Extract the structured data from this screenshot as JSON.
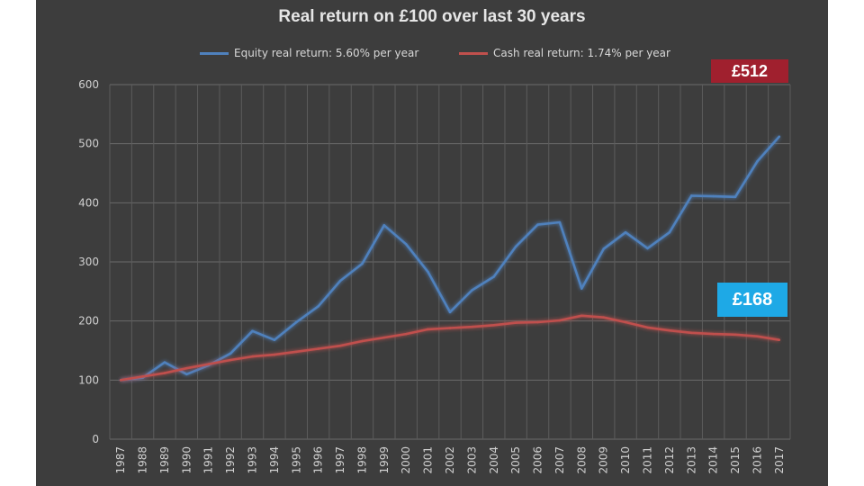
{
  "chart_data": {
    "type": "line",
    "title": "Real return on £100 over last 30 years",
    "xlabel": "",
    "ylabel": "",
    "ylim": [
      0,
      600
    ],
    "yticks": [
      0,
      100,
      200,
      300,
      400,
      500,
      600
    ],
    "grid": true,
    "legend_position": "top",
    "categories": [
      "1987",
      "1988",
      "1989",
      "1990",
      "1991",
      "1992",
      "1993",
      "1994",
      "1995",
      "1996",
      "1997",
      "1998",
      "1999",
      "2000",
      "2001",
      "2002",
      "2003",
      "2004",
      "2005",
      "2006",
      "2007",
      "2008",
      "2009",
      "2010",
      "2011",
      "2012",
      "2013",
      "2014",
      "2015",
      "2016",
      "2017"
    ],
    "series": [
      {
        "name": "Equity real return: 5.60% per year",
        "color": "#4f81bd",
        "values": [
          100,
          104,
          130,
          110,
          125,
          145,
          183,
          168,
          198,
          225,
          268,
          297,
          362,
          330,
          283,
          215,
          252,
          275,
          326,
          363,
          367,
          255,
          322,
          350,
          323,
          350,
          412,
          411,
          410,
          470,
          512
        ]
      },
      {
        "name": "Cash real return: 1.74% per year",
        "color": "#c0504d",
        "values": [
          100,
          106,
          112,
          120,
          127,
          134,
          140,
          143,
          148,
          153,
          158,
          166,
          172,
          178,
          186,
          188,
          190,
          193,
          197,
          198,
          201,
          209,
          206,
          198,
          189,
          184,
          180,
          178,
          177,
          174,
          168
        ]
      }
    ],
    "annotations": [
      {
        "text": "£512",
        "color": "#a0202e"
      },
      {
        "text": "£168",
        "color": "#1ea9e6"
      }
    ]
  }
}
